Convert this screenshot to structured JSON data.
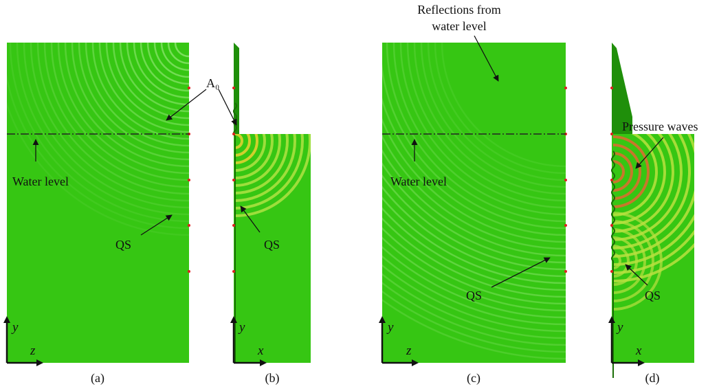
{
  "panels": [
    {
      "label": "(a)",
      "axes": {
        "vertical": "y",
        "horizontal": "z"
      },
      "annotations": [
        "Water level",
        "QS"
      ]
    },
    {
      "label": "(b)",
      "axes": {
        "vertical": "y",
        "horizontal": "x"
      },
      "annotations": [
        "QS"
      ]
    },
    {
      "label": "(c)",
      "axes": {
        "vertical": "y",
        "horizontal": "z"
      },
      "annotations": [
        "Reflections from",
        "water level",
        "Water level",
        "QS"
      ]
    },
    {
      "label": "(d)",
      "axes": {
        "vertical": "y",
        "horizontal": "x"
      },
      "annotations": [
        "Pressure waves",
        "QS"
      ]
    }
  ],
  "shared_annotation": "A₀"
}
